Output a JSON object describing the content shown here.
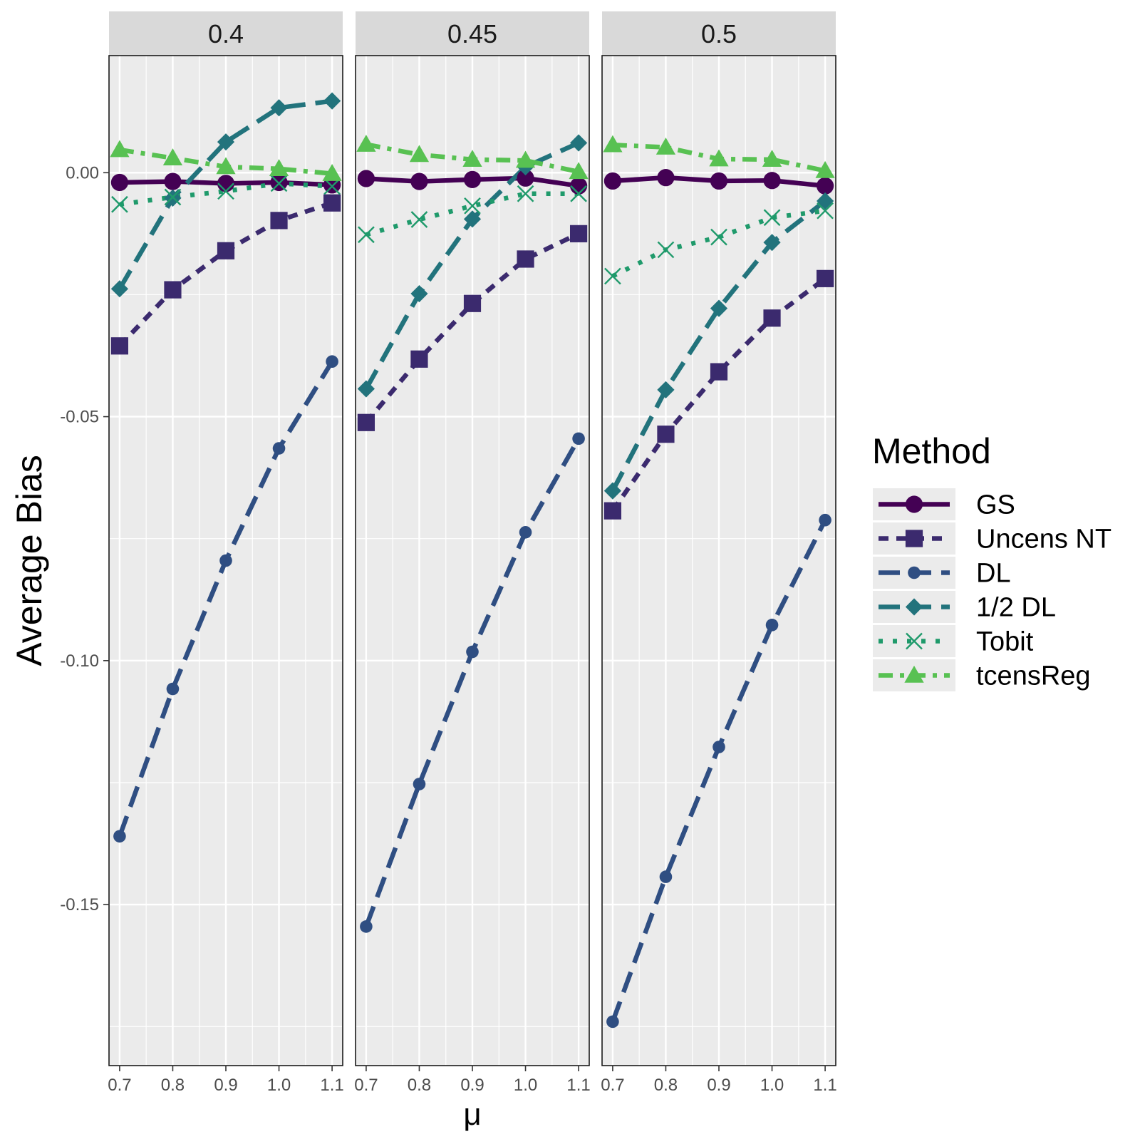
{
  "chart_data": {
    "type": "line",
    "ylabel": "Average Bias",
    "xlabel": "μ",
    "x": [
      0.7,
      0.8,
      0.9,
      1.0,
      1.1
    ],
    "x_tick_labels": [
      "0.7",
      "0.8",
      "0.9",
      "1.0",
      "1.1"
    ],
    "xlim": [
      0.68,
      1.12
    ],
    "ylim": [
      -0.183,
      0.024
    ],
    "y_ticks": [
      0.0,
      -0.05,
      -0.1,
      -0.15
    ],
    "y_tick_labels": [
      "0.00",
      "-0.05",
      "-0.10",
      "-0.15"
    ],
    "grid": true,
    "legend": {
      "title": "Method",
      "position": "right"
    },
    "series_styles": [
      {
        "name": "GS",
        "color": "#440154",
        "dash": "solid",
        "marker": "circle"
      },
      {
        "name": "Uncens NT",
        "color": "#3B2A6E",
        "dash": "short-dash",
        "marker": "square"
      },
      {
        "name": "DL",
        "color": "#2F4E82",
        "dash": "long-dash",
        "marker": "small-circle"
      },
      {
        "name": "1/2 DL",
        "color": "#22737C",
        "dash": "long-dash",
        "marker": "diamond"
      },
      {
        "name": "Tobit",
        "color": "#1F9A6B",
        "dash": "dotted",
        "marker": "x"
      },
      {
        "name": "tcensReg",
        "color": "#58C152",
        "dash": "dot-dash",
        "marker": "triangle"
      }
    ],
    "panels": [
      {
        "label": "0.4",
        "series": [
          {
            "name": "GS",
            "values": [
              -0.002,
              -0.0018,
              -0.0022,
              -0.002,
              -0.0025
            ]
          },
          {
            "name": "Uncens NT",
            "values": [
              -0.0355,
              -0.024,
              -0.016,
              -0.0098,
              -0.0062
            ]
          },
          {
            "name": "DL",
            "values": [
              -0.136,
              -0.1058,
              -0.0795,
              -0.0565,
              -0.0387
            ]
          },
          {
            "name": "1/2 DL",
            "values": [
              -0.0238,
              -0.0052,
              0.0063,
              0.0133,
              0.0147
            ]
          },
          {
            "name": "Tobit",
            "values": [
              -0.0065,
              -0.005,
              -0.0038,
              -0.0022,
              -0.0028
            ]
          },
          {
            "name": "tcensReg",
            "values": [
              0.0047,
              0.003,
              0.0012,
              0.0008,
              -0.0002
            ]
          }
        ]
      },
      {
        "label": "0.45",
        "series": [
          {
            "name": "GS",
            "values": [
              -0.0012,
              -0.0018,
              -0.0014,
              -0.0011,
              -0.0027
            ]
          },
          {
            "name": "Uncens NT",
            "values": [
              -0.0512,
              -0.0382,
              -0.0268,
              -0.0177,
              -0.0125
            ]
          },
          {
            "name": "DL",
            "values": [
              -0.1545,
              -0.1253,
              -0.0982,
              -0.0737,
              -0.0545
            ]
          },
          {
            "name": "1/2 DL",
            "values": [
              -0.0443,
              -0.0248,
              -0.0095,
              0.0012,
              0.0061
            ]
          },
          {
            "name": "Tobit",
            "values": [
              -0.0127,
              -0.0096,
              -0.0068,
              -0.0043,
              -0.0043
            ]
          },
          {
            "name": "tcensReg",
            "values": [
              0.0058,
              0.0037,
              0.0027,
              0.0025,
              0.0002
            ]
          }
        ]
      },
      {
        "label": "0.5",
        "series": [
          {
            "name": "GS",
            "values": [
              -0.0017,
              -0.001,
              -0.0017,
              -0.0016,
              -0.0027
            ]
          },
          {
            "name": "Uncens NT",
            "values": [
              -0.0693,
              -0.0536,
              -0.0408,
              -0.0298,
              -0.0217
            ]
          },
          {
            "name": "DL",
            "values": [
              -0.174,
              -0.1443,
              -0.1177,
              -0.0927,
              -0.0712
            ]
          },
          {
            "name": "1/2 DL",
            "values": [
              -0.0652,
              -0.0445,
              -0.0278,
              -0.0143,
              -0.0058
            ]
          },
          {
            "name": "Tobit",
            "values": [
              -0.0212,
              -0.0158,
              -0.0132,
              -0.0092,
              -0.0078
            ]
          },
          {
            "name": "tcensReg",
            "values": [
              0.0057,
              0.0052,
              0.0028,
              0.0027,
              0.0004
            ]
          }
        ]
      }
    ]
  }
}
